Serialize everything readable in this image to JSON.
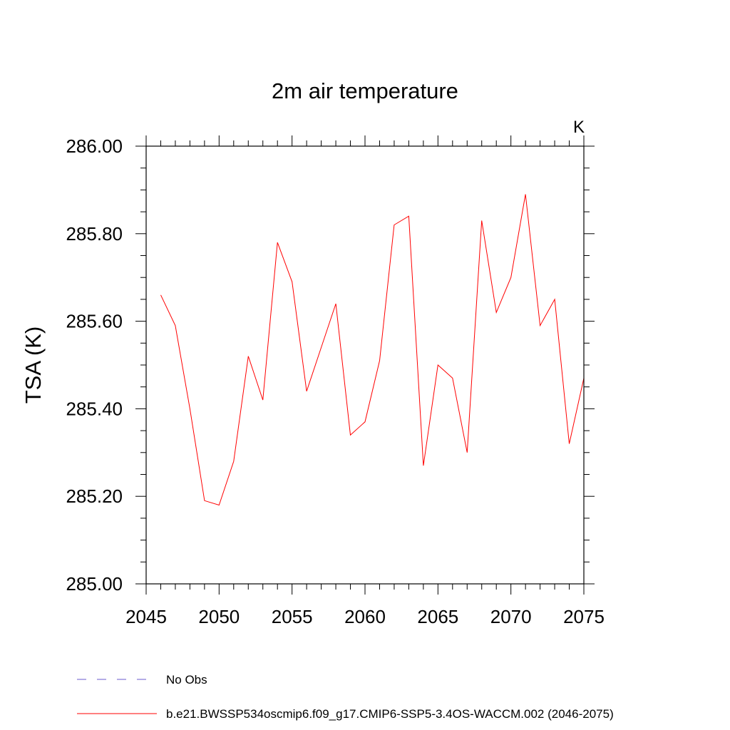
{
  "chart_data": {
    "type": "line",
    "title": "2m air temperature",
    "units_label": "K",
    "xlabel": "",
    "ylabel": "TSA  (K)",
    "xlim": [
      2045,
      2075
    ],
    "ylim": [
      285.0,
      286.0
    ],
    "x_ticks": [
      2045,
      2050,
      2055,
      2060,
      2065,
      2070,
      2075
    ],
    "y_ticks": [
      285.0,
      285.2,
      285.4,
      285.6,
      285.8,
      286.0
    ],
    "y_tick_labels": [
      "285.00",
      "285.20",
      "285.40",
      "285.60",
      "285.80",
      "286.00"
    ],
    "x_minor_step": 1,
    "y_minor_step": 0.05,
    "grid": false,
    "legend_position": "bottom",
    "series": [
      {
        "name": "b.e21.BWSSP534oscmip6.f09_g17.CMIP6-SSP5-3.4OS-WACCM.002 (2046-2075)",
        "color": "#ff0000",
        "style": "solid",
        "x": [
          2046,
          2047,
          2048,
          2049,
          2050,
          2051,
          2052,
          2053,
          2054,
          2055,
          2056,
          2057,
          2058,
          2059,
          2060,
          2061,
          2062,
          2063,
          2064,
          2065,
          2066,
          2067,
          2068,
          2069,
          2070,
          2071,
          2072,
          2073,
          2074,
          2075
        ],
        "values": [
          285.66,
          285.59,
          285.4,
          285.19,
          285.18,
          285.28,
          285.52,
          285.42,
          285.78,
          285.69,
          285.44,
          285.54,
          285.64,
          285.34,
          285.37,
          285.51,
          285.82,
          285.84,
          285.27,
          285.5,
          285.47,
          285.3,
          285.83,
          285.62,
          285.7,
          285.89,
          285.59,
          285.65,
          285.32,
          285.47
        ]
      }
    ],
    "legend": [
      {
        "label": "No Obs",
        "color": "#6a5acd",
        "style": "dashed"
      },
      {
        "label": "b.e21.BWSSP534oscmip6.f09_g17.CMIP6-SSP5-3.4OS-WACCM.002 (2046-2075)",
        "color": "#ff0000",
        "style": "solid"
      }
    ]
  }
}
